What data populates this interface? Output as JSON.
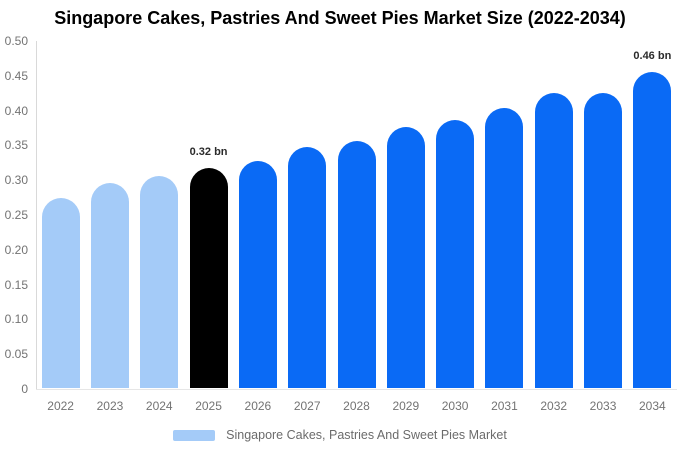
{
  "header": {
    "title": "Singapore Cakes, Pastries And Sweet Pies Market Size (2022-2034)"
  },
  "legend": {
    "label": "Singapore Cakes, Pastries And Sweet Pies Market",
    "swatch_color": "#a4cbf8"
  },
  "chart_data": {
    "type": "bar",
    "title": "Singapore Cakes, Pastries And Sweet Pies Market Size (2022-2034)",
    "categories": [
      "2022",
      "2023",
      "2024",
      "2025",
      "2026",
      "2027",
      "2028",
      "2029",
      "2030",
      "2031",
      "2032",
      "2033",
      "2034"
    ],
    "series": [
      {
        "name": "Singapore Cakes, Pastries And Sweet Pies Market",
        "values": [
          0.275,
          0.296,
          0.306,
          0.317,
          0.327,
          0.347,
          0.357,
          0.376,
          0.386,
          0.404,
          0.425,
          0.426,
          0.455
        ]
      }
    ],
    "unit": "bn",
    "xlabel": "",
    "ylabel": "",
    "ylim": [
      0,
      0.5
    ],
    "ytick_labels": [
      "0.50",
      "0.45",
      "0.40",
      "0.35",
      "0.30",
      "0.25",
      "0.20",
      "0.15",
      "0.10",
      "0.05",
      "0"
    ],
    "grid": false,
    "legend_position": "bottom",
    "colors": {
      "historical": "#a4cbf8",
      "base_year": "#000000",
      "forecast": "#0a6af5"
    },
    "point_roles": [
      "historical",
      "historical",
      "historical",
      "base_year",
      "forecast",
      "forecast",
      "forecast",
      "forecast",
      "forecast",
      "forecast",
      "forecast",
      "forecast",
      "forecast"
    ],
    "annotations": [
      {
        "category": "2025",
        "text": "0.32 bn"
      },
      {
        "category": "2034",
        "text": "0.46 bn"
      }
    ],
    "axis_text_color": "#737373"
  }
}
